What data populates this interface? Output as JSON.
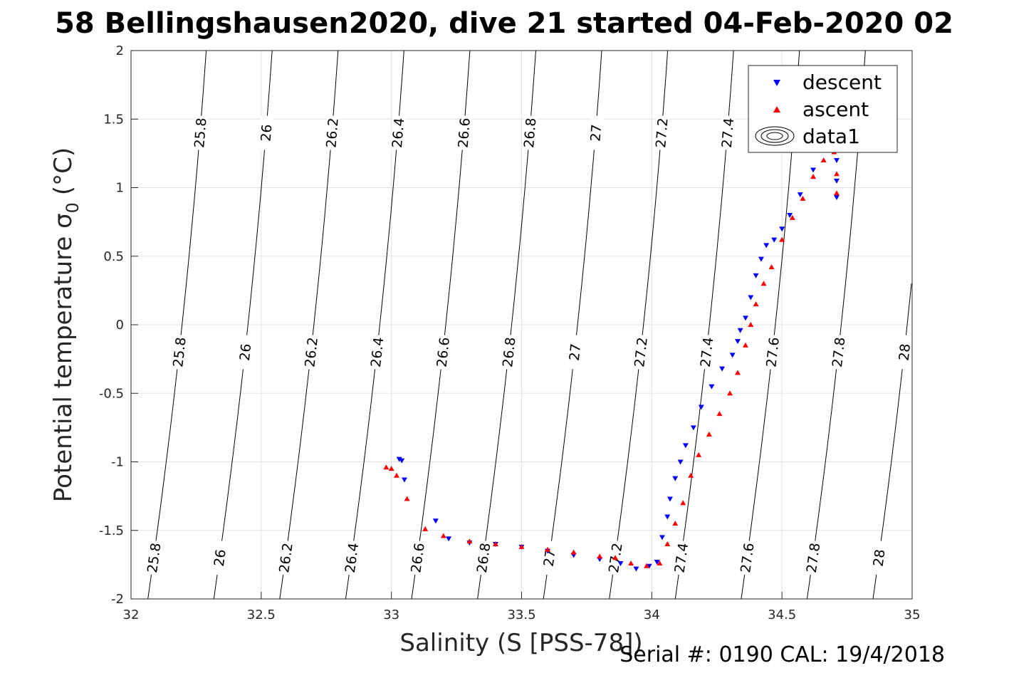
{
  "chart_data": {
    "type": "scatter",
    "title": "58 Bellingshausen2020, dive 21 started 04-Feb-2020 02",
    "xlabel": "Salinity (S [PSS-78])",
    "ylabel": "Potential temperature σ₀ (°C)",
    "ylabel_main": "Potential temperature σ",
    "ylabel_sub": "0",
    "ylabel_unit": "(°C)",
    "xlim": [
      32,
      35
    ],
    "ylim": [
      -2,
      2
    ],
    "xticks": [
      "32",
      "32.5",
      "33",
      "33.5",
      "34",
      "34.5",
      "35"
    ],
    "yticks": [
      "-2",
      "-1.5",
      "-1",
      "-0.5",
      "0",
      "0.5",
      "1",
      "1.5",
      "2"
    ],
    "grid": true,
    "legend": {
      "placement": "top-right",
      "entries": [
        "descent",
        "ascent",
        "data1"
      ]
    },
    "density_contours": [
      {
        "level": 25.8,
        "label": "25.8"
      },
      {
        "level": 26.0,
        "label": "26"
      },
      {
        "level": 26.2,
        "label": "26.2"
      },
      {
        "level": 26.4,
        "label": "26.4"
      },
      {
        "level": 26.6,
        "label": "26.6"
      },
      {
        "level": 26.8,
        "label": "26.8"
      },
      {
        "level": 27.0,
        "label": "27"
      },
      {
        "level": 27.2,
        "label": "27.2"
      },
      {
        "level": 27.4,
        "label": "27.4"
      },
      {
        "level": 27.6,
        "label": "27.6"
      },
      {
        "level": 27.8,
        "label": "27.8"
      },
      {
        "level": 28.0,
        "label": "28"
      }
    ],
    "series": [
      {
        "name": "descent",
        "color": "#0000ff",
        "marker": "triangle-down",
        "points": [
          [
            33.03,
            -0.98
          ],
          [
            33.04,
            -0.99
          ],
          [
            33.05,
            -1.13
          ],
          [
            33.17,
            -1.43
          ],
          [
            33.22,
            -1.56
          ],
          [
            33.3,
            -1.59
          ],
          [
            33.4,
            -1.6
          ],
          [
            33.5,
            -1.62
          ],
          [
            33.6,
            -1.65
          ],
          [
            33.7,
            -1.68
          ],
          [
            33.8,
            -1.71
          ],
          [
            33.88,
            -1.74
          ],
          [
            33.94,
            -1.78
          ],
          [
            33.99,
            -1.76
          ],
          [
            34.02,
            -1.73
          ],
          [
            34.04,
            -1.55
          ],
          [
            34.06,
            -1.4
          ],
          [
            34.07,
            -1.27
          ],
          [
            34.09,
            -1.12
          ],
          [
            34.11,
            -1.0
          ],
          [
            34.13,
            -0.88
          ],
          [
            34.16,
            -0.75
          ],
          [
            34.19,
            -0.6
          ],
          [
            34.23,
            -0.45
          ],
          [
            34.27,
            -0.32
          ],
          [
            34.31,
            -0.22
          ],
          [
            34.33,
            -0.12
          ],
          [
            34.34,
            -0.04
          ],
          [
            34.36,
            0.05
          ],
          [
            34.38,
            0.2
          ],
          [
            34.4,
            0.36
          ],
          [
            34.42,
            0.48
          ],
          [
            34.44,
            0.58
          ],
          [
            34.47,
            0.62
          ],
          [
            34.5,
            0.7
          ],
          [
            34.53,
            0.8
          ],
          [
            34.57,
            0.95
          ],
          [
            34.62,
            1.13
          ],
          [
            34.68,
            1.28
          ],
          [
            34.71,
            1.2
          ],
          [
            34.71,
            1.05
          ],
          [
            34.71,
            0.93
          ]
        ]
      },
      {
        "name": "ascent",
        "color": "#ff0000",
        "marker": "triangle-up",
        "points": [
          [
            32.98,
            -1.04
          ],
          [
            33.0,
            -1.05
          ],
          [
            33.02,
            -1.1
          ],
          [
            33.06,
            -1.27
          ],
          [
            33.13,
            -1.49
          ],
          [
            33.2,
            -1.54
          ],
          [
            33.3,
            -1.58
          ],
          [
            33.4,
            -1.6
          ],
          [
            33.5,
            -1.62
          ],
          [
            33.6,
            -1.64
          ],
          [
            33.7,
            -1.66
          ],
          [
            33.8,
            -1.69
          ],
          [
            33.86,
            -1.7
          ],
          [
            33.92,
            -1.74
          ],
          [
            33.98,
            -1.76
          ],
          [
            34.03,
            -1.74
          ],
          [
            34.06,
            -1.6
          ],
          [
            34.09,
            -1.45
          ],
          [
            34.12,
            -1.3
          ],
          [
            34.15,
            -1.1
          ],
          [
            34.18,
            -0.95
          ],
          [
            34.22,
            -0.8
          ],
          [
            34.26,
            -0.65
          ],
          [
            34.3,
            -0.5
          ],
          [
            34.33,
            -0.35
          ],
          [
            34.36,
            -0.15
          ],
          [
            34.38,
            0.0
          ],
          [
            34.4,
            0.15
          ],
          [
            34.43,
            0.3
          ],
          [
            34.46,
            0.42
          ],
          [
            34.5,
            0.62
          ],
          [
            34.54,
            0.78
          ],
          [
            34.58,
            0.92
          ],
          [
            34.62,
            1.08
          ],
          [
            34.66,
            1.2
          ],
          [
            34.7,
            1.26
          ],
          [
            34.71,
            1.1
          ],
          [
            34.71,
            0.96
          ]
        ]
      }
    ],
    "footer": "Serial #: 0190  CAL: 19/4/2018"
  }
}
